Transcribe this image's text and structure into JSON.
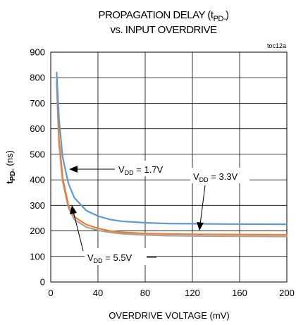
{
  "chart_data": {
    "type": "line",
    "title_line1": "PROPAGATION DELAY (t",
    "title_line1_sub": "PD-",
    "title_line1_end": ")",
    "title_line2": "vs. INPUT OVERDRIVE",
    "figure_id": "toc12a",
    "xlabel": "OVERDRIVE VOLTAGE (mV)",
    "ylabel_main": "t",
    "ylabel_sub": "PD-",
    "ylabel_unit": " (ns)",
    "xlim": [
      0,
      200
    ],
    "ylim": [
      0,
      900
    ],
    "xticks": [
      "0",
      "40",
      "80",
      "120",
      "160",
      "200"
    ],
    "yticks": [
      "0",
      "100",
      "200",
      "300",
      "400",
      "500",
      "600",
      "700",
      "800",
      "900"
    ],
    "grid": true,
    "series": [
      {
        "name": "VDD = 1.7V",
        "color": "#5b9bd5",
        "x": [
          5,
          7,
          10,
          15,
          20,
          30,
          40,
          50,
          60,
          80,
          100,
          120,
          150,
          200
        ],
        "y": [
          820,
          640,
          490,
          385,
          330,
          280,
          258,
          245,
          238,
          232,
          229,
          228,
          227,
          226
        ]
      },
      {
        "name": "VDD = 3.3V",
        "color": "#ed7d31",
        "x": [
          5,
          7,
          10,
          15,
          20,
          30,
          40,
          50,
          60,
          80,
          100,
          120,
          150,
          200
        ],
        "y": [
          790,
          560,
          410,
          300,
          255,
          225,
          210,
          200,
          195,
          190,
          188,
          187,
          186,
          185
        ]
      },
      {
        "name": "VDD = 5.5V",
        "color": "#a5a5a5",
        "x": [
          5,
          7,
          10,
          15,
          20,
          30,
          40,
          50,
          60,
          80,
          100,
          120,
          150,
          200
        ],
        "y": [
          780,
          540,
          395,
          290,
          245,
          215,
          202,
          194,
          189,
          184,
          181,
          180,
          179,
          178
        ]
      }
    ],
    "annotations": [
      {
        "main": "V",
        "sub": "DD",
        "rest": " = 1.7V"
      },
      {
        "main": "V",
        "sub": "DD",
        "rest": " = 3.3V"
      },
      {
        "main": "V",
        "sub": "DD",
        "rest": " = 5.5V"
      }
    ]
  }
}
